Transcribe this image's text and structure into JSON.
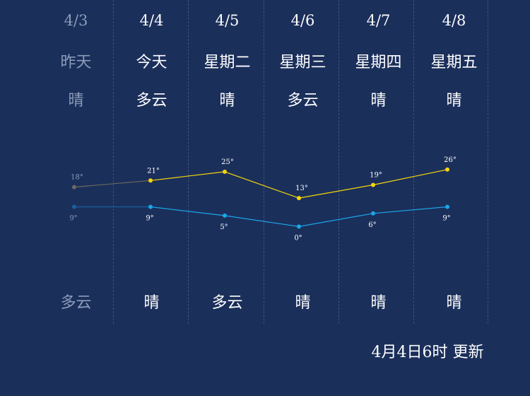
{
  "days": [
    {
      "date": "4/3",
      "dow": "昨天",
      "weather_day": "晴",
      "weather_night": "多云",
      "high": 18,
      "low": 9,
      "past": true
    },
    {
      "date": "4/4",
      "dow": "今天",
      "weather_day": "多云",
      "weather_night": "晴",
      "high": 21,
      "low": 9,
      "past": false
    },
    {
      "date": "4/5",
      "dow": "星期二",
      "weather_day": "晴",
      "weather_night": "多云",
      "high": 25,
      "low": 5,
      "past": false
    },
    {
      "date": "4/6",
      "dow": "星期三",
      "weather_day": "多云",
      "weather_night": "晴",
      "high": 13,
      "low": 0,
      "past": false
    },
    {
      "date": "4/7",
      "dow": "星期四",
      "weather_day": "晴",
      "weather_night": "晴",
      "high": 19,
      "low": 6,
      "past": false
    },
    {
      "date": "4/8",
      "dow": "星期五",
      "weather_day": "晴",
      "weather_night": "晴",
      "high": 26,
      "low": 9,
      "past": false
    }
  ],
  "update_text": "4月4日6时 更新",
  "colors": {
    "background": "#1b2f5b",
    "high_line": "#f5d60a",
    "low_line": "#1aa6e8",
    "past_high": "#6b6b5a",
    "past_low": "#1a5f9e",
    "past_text": "#8c9cb8"
  },
  "chart_data": {
    "type": "line",
    "categories": [
      "4/3",
      "4/4",
      "4/5",
      "4/6",
      "4/7",
      "4/8"
    ],
    "series": [
      {
        "values": [
          18,
          21,
          25,
          13,
          19,
          26
        ]
      },
      {
        "values": [
          9,
          9,
          5,
          0,
          6,
          9
        ]
      }
    ]
  }
}
